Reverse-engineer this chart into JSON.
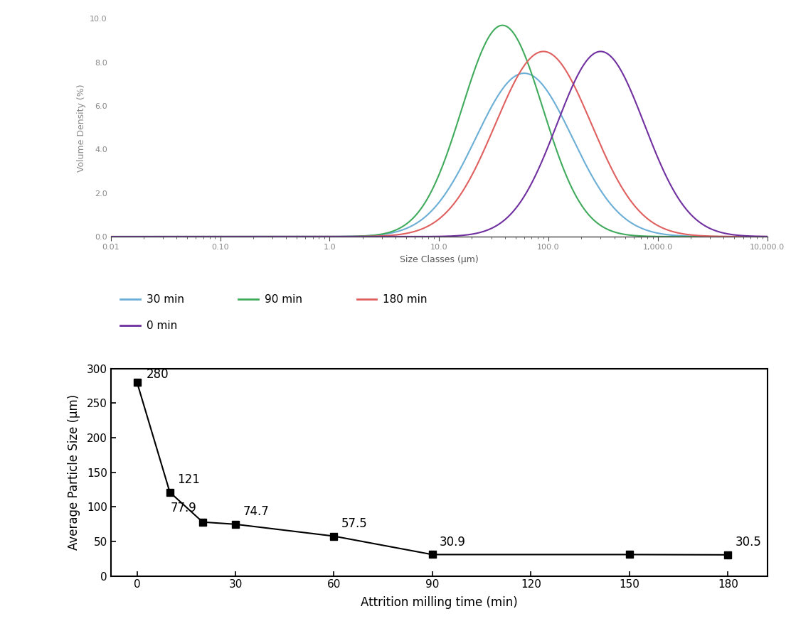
{
  "top_plot": {
    "curves": [
      {
        "label": "30 min",
        "color": "#6baed6",
        "peak_x": 60,
        "peak_y": 7.5,
        "sigma": 0.44
      },
      {
        "label": "90 min",
        "color": "#41ab5d",
        "peak_x": 38,
        "peak_y": 9.7,
        "sigma": 0.37
      },
      {
        "label": "180 min",
        "color": "#e06060",
        "peak_x": 90,
        "peak_y": 8.5,
        "sigma": 0.44
      },
      {
        "label": "0 min",
        "color": "#7030a0",
        "peak_x": 300,
        "peak_y": 8.5,
        "sigma": 0.4
      }
    ],
    "xlabel": "Size Classes (μm)",
    "ylabel": "Volume Density (%)",
    "ylim": [
      0.0,
      10.0
    ],
    "yticks": [
      0.0,
      2.0,
      4.0,
      6.0,
      8.0,
      10.0
    ],
    "xtick_vals": [
      0.01,
      0.1,
      1.0,
      10.0,
      100.0,
      1000.0,
      10000.0
    ],
    "xtick_labels": [
      "0.01",
      "0.10",
      "1.0",
      "10.0",
      "100.0",
      "1,000.0",
      "10,000.0"
    ]
  },
  "bottom_plot": {
    "x": [
      0,
      10,
      20,
      30,
      60,
      90,
      150,
      180
    ],
    "y": [
      280,
      121,
      77.9,
      74.7,
      57.5,
      30.9,
      30.9,
      30.5
    ],
    "annotation_labels": [
      "280",
      "121",
      "77.9",
      "74.7",
      "57.5",
      "30.9",
      "",
      "30.5"
    ],
    "annotation_dx": [
      5,
      4,
      -18,
      4,
      4,
      4,
      0,
      4
    ],
    "annotation_dy": [
      2,
      10,
      12,
      10,
      10,
      10,
      0,
      10
    ],
    "xlabel": "Attrition milling time (min)",
    "ylabel": "Average Particle Size (μm)",
    "xlim": [
      -8,
      192
    ],
    "ylim": [
      0,
      300
    ],
    "xticks": [
      0,
      30,
      60,
      90,
      120,
      150,
      180
    ],
    "yticks": [
      0,
      50,
      100,
      150,
      200,
      250,
      300
    ],
    "marker": "s",
    "markersize": 7,
    "color": "#000000",
    "linewidth": 1.5
  }
}
